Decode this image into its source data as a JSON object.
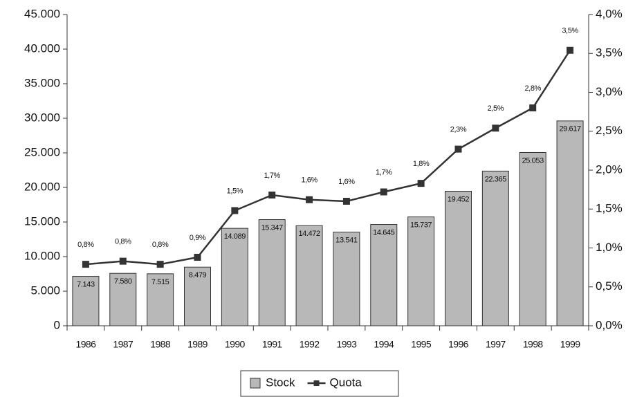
{
  "chart_data": {
    "type": "bar",
    "categories": [
      "1986",
      "1987",
      "1988",
      "1989",
      "1990",
      "1991",
      "1992",
      "1993",
      "1994",
      "1995",
      "1996",
      "1997",
      "1998",
      "1999"
    ],
    "series": [
      {
        "name": "Stock",
        "type": "bar",
        "color": "#b8b8b8",
        "values": [
          7143,
          7580,
          7515,
          8479,
          14089,
          15347,
          14472,
          13541,
          14645,
          15737,
          19452,
          22365,
          25053,
          29617
        ],
        "value_labels": [
          "7.143",
          "7.580",
          "7.515",
          "8.479",
          "14.089",
          "15.347",
          "14.472",
          "13.541",
          "14.645",
          "15.737",
          "19.452",
          "22.365",
          "25.053",
          "29.617"
        ]
      },
      {
        "name": "Quota",
        "type": "line",
        "axis": "y2",
        "color": "#333333",
        "values": [
          0.79,
          0.83,
          0.79,
          0.88,
          1.48,
          1.68,
          1.62,
          1.6,
          1.72,
          1.83,
          2.27,
          2.54,
          2.8,
          3.54
        ],
        "value_labels": [
          "0,8%",
          "0,8%",
          "0,8%",
          "0,9%",
          "1,5%",
          "1,7%",
          "1,6%",
          "1,6%",
          "1,7%",
          "1,8%",
          "2,3%",
          "2,5%",
          "2,8%",
          "3,5%"
        ]
      }
    ],
    "ylim": [
      0,
      45000
    ],
    "yticks": [
      0,
      {
        "value": 5000,
        "label": "5.000"
      },
      {
        "value": 10000,
        "label": "10.000"
      },
      {
        "value": 15000,
        "label": "15.000"
      },
      {
        "value": 20000,
        "label": "20.000"
      },
      {
        "value": 25000,
        "label": "25.000"
      },
      {
        "value": 30000,
        "label": "30.000"
      },
      {
        "value": 35000,
        "label": "35.000"
      },
      {
        "value": 40000,
        "label": "40.000"
      },
      {
        "value": 45000,
        "label": "45.000"
      }
    ],
    "y2lim": [
      0,
      4
    ],
    "y2ticks": [
      {
        "value": 0,
        "label": "0,0%"
      },
      {
        "value": 0.5,
        "label": "0,5%"
      },
      {
        "value": 1,
        "label": "1,0%"
      },
      {
        "value": 1.5,
        "label": "1,5%"
      },
      {
        "value": 2,
        "label": "2,0%"
      },
      {
        "value": 2.5,
        "label": "2,5%"
      },
      {
        "value": 3,
        "label": "3,0%"
      },
      {
        "value": 3.5,
        "label": "3,5%"
      },
      {
        "value": 4,
        "label": "4,0%"
      }
    ],
    "grid": false,
    "legend": "bottom"
  }
}
